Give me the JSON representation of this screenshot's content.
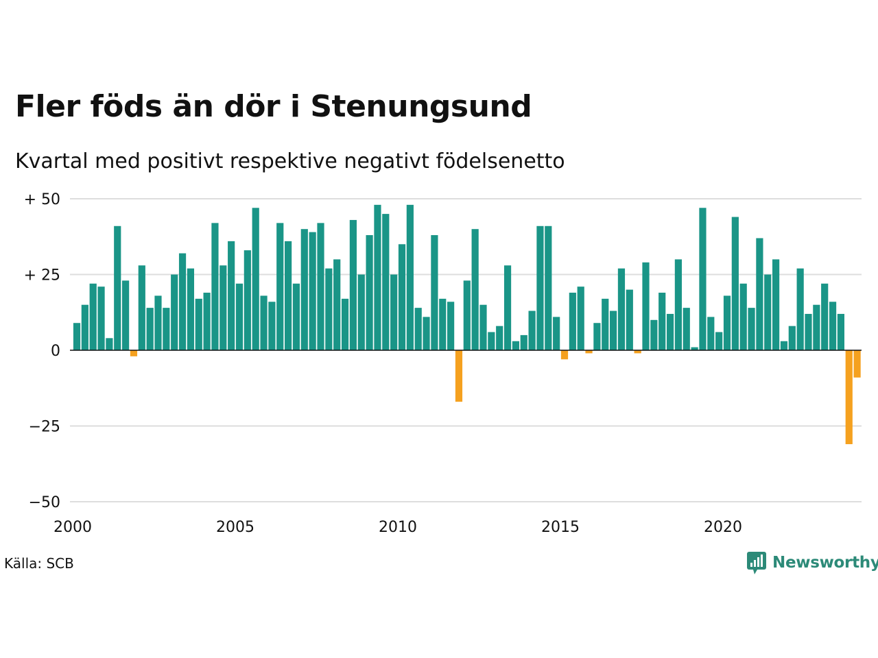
{
  "title": "Fler föds än dör i Stenungsund",
  "subtitle": "Kvartal med positivt respektive negativt födelsenetto",
  "source": "Källa: SCB",
  "brand": "Newsworthy",
  "colors": {
    "positive": "#1a9587",
    "negative": "#f5a11f",
    "grid": "#dddddd",
    "axis": "#111111",
    "brand": "#2c8a78"
  },
  "chart_data": {
    "type": "bar",
    "start_year": 2000,
    "periods_per_year": 4,
    "ylim": [
      -50,
      50
    ],
    "y_ticks": [
      {
        "value": 50,
        "label": "+ 50"
      },
      {
        "value": 25,
        "label": "+ 25"
      },
      {
        "value": 0,
        "label": "0"
      },
      {
        "value": -25,
        "label": "−25"
      },
      {
        "value": -50,
        "label": "−50"
      }
    ],
    "x_ticks": [
      {
        "year": 2000,
        "label": "2000"
      },
      {
        "year": 2005,
        "label": "2005"
      },
      {
        "year": 2010,
        "label": "2010"
      },
      {
        "year": 2015,
        "label": "2015"
      },
      {
        "year": 2020,
        "label": "2020"
      }
    ],
    "grid": true,
    "values": [
      9,
      15,
      22,
      21,
      4,
      41,
      23,
      -2,
      28,
      14,
      18,
      14,
      25,
      32,
      27,
      17,
      19,
      42,
      28,
      36,
      22,
      33,
      47,
      18,
      16,
      42,
      36,
      22,
      40,
      39,
      42,
      27,
      30,
      17,
      43,
      25,
      38,
      48,
      45,
      25,
      35,
      48,
      14,
      11,
      38,
      17,
      16,
      -17,
      23,
      40,
      15,
      6,
      8,
      28,
      3,
      5,
      13,
      41,
      41,
      11,
      -3,
      19,
      21,
      -1,
      9,
      17,
      13,
      27,
      20,
      -1,
      29,
      10,
      19,
      12,
      30,
      14,
      1,
      47,
      11,
      6,
      18,
      44,
      22,
      14,
      37,
      25,
      30,
      3,
      8,
      27,
      12,
      15,
      22,
      16,
      12,
      -31,
      -9
    ]
  }
}
